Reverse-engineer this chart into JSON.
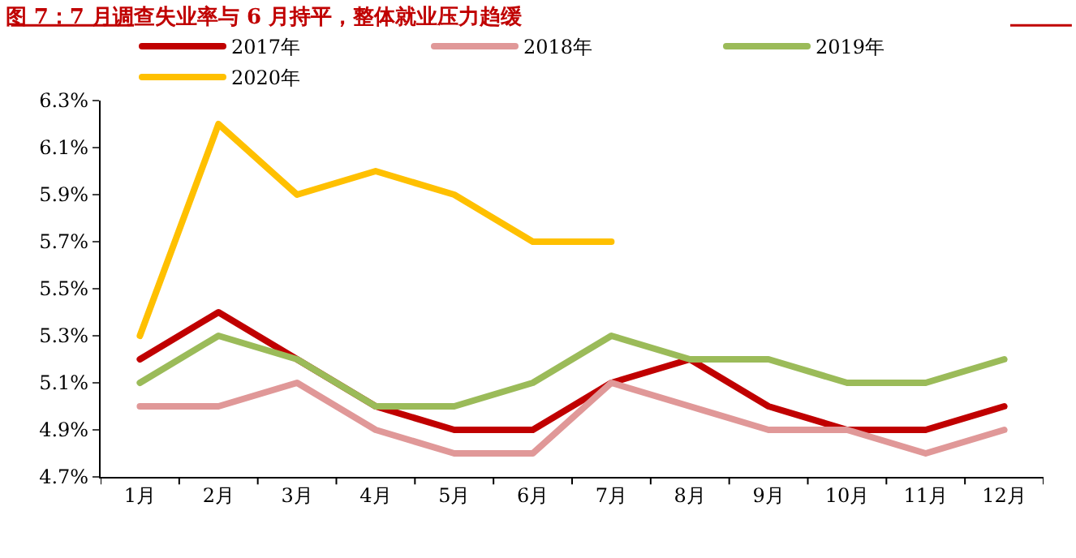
{
  "chart_data": {
    "type": "line",
    "title": "图 7：7 月调查失业率与 6 月持平，整体就业压力趋缓",
    "categories": [
      "1月",
      "2月",
      "3月",
      "4月",
      "5月",
      "6月",
      "7月",
      "8月",
      "9月",
      "10月",
      "11月",
      "12月"
    ],
    "series": [
      {
        "name": "2017年",
        "color": "#c00000",
        "values": [
          5.2,
          5.4,
          5.2,
          5.0,
          4.9,
          4.9,
          5.1,
          5.2,
          5.0,
          4.9,
          4.9,
          5.0
        ]
      },
      {
        "name": "2018年",
        "color": "#e09898",
        "values": [
          5.0,
          5.0,
          5.1,
          4.9,
          4.8,
          4.8,
          5.1,
          5.0,
          4.9,
          4.9,
          4.8,
          4.9
        ]
      },
      {
        "name": "2019年",
        "color": "#9bbb59",
        "values": [
          5.1,
          5.3,
          5.2,
          5.0,
          5.0,
          5.1,
          5.3,
          5.2,
          5.2,
          5.1,
          5.1,
          5.2
        ]
      },
      {
        "name": "2020年",
        "color": "#ffc000",
        "values": [
          5.3,
          6.2,
          5.9,
          6.0,
          5.9,
          5.7,
          5.7,
          null,
          null,
          null,
          null,
          null
        ]
      }
    ],
    "ylim": [
      4.7,
      6.3
    ],
    "yticks": [
      {
        "value": 4.7,
        "label": "4.7%"
      },
      {
        "value": 4.9,
        "label": "4.9%"
      },
      {
        "value": 5.1,
        "label": "5.1%"
      },
      {
        "value": 5.3,
        "label": "5.3%"
      },
      {
        "value": 5.5,
        "label": "5.5%"
      },
      {
        "value": 5.7,
        "label": "5.7%"
      },
      {
        "value": 5.9,
        "label": "5.9%"
      },
      {
        "value": 6.1,
        "label": "6.1%"
      },
      {
        "value": 6.3,
        "label": "6.3%"
      }
    ],
    "grid": false,
    "legend": "top",
    "marker": "none",
    "line_style": "solid"
  }
}
